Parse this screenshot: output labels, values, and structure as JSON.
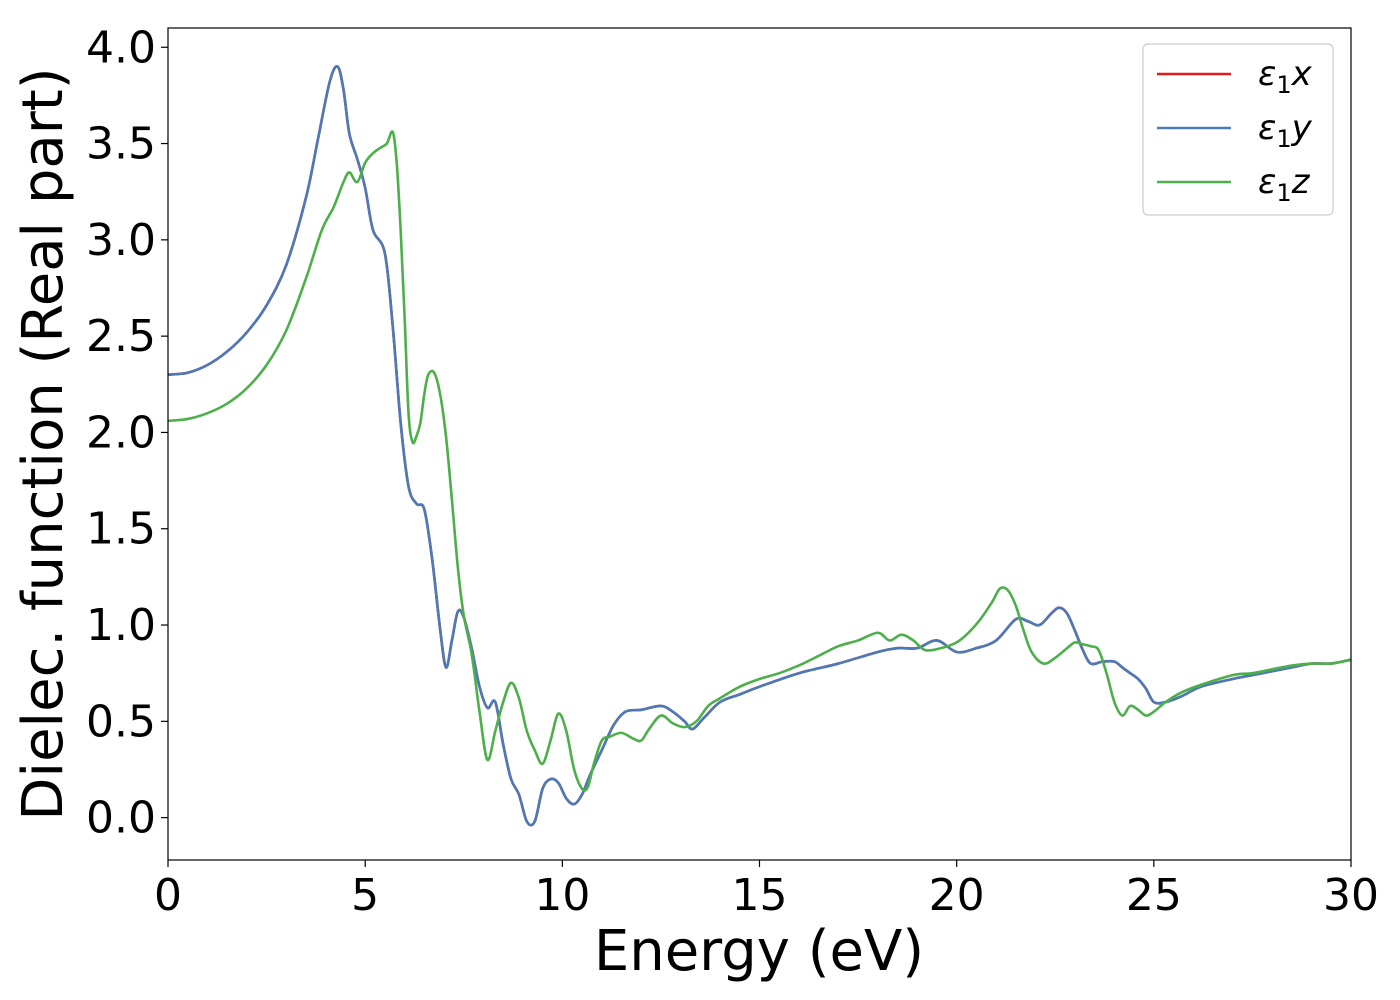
{
  "chart_data": {
    "type": "line",
    "xlabel": "Energy (eV)",
    "ylabel": "Dielec. function (Real part)",
    "xlim": [
      0,
      30
    ],
    "ylim": [
      -0.22,
      4.1
    ],
    "xticks": [
      0,
      5,
      10,
      15,
      20,
      25,
      30
    ],
    "xtick_labels": [
      "0",
      "5",
      "10",
      "15",
      "20",
      "25",
      "30"
    ],
    "yticks": [
      0.0,
      0.5,
      1.0,
      1.5,
      2.0,
      2.5,
      3.0,
      3.5,
      4.0
    ],
    "ytick_labels": [
      "0.0",
      "0.5",
      "1.0",
      "1.5",
      "2.0",
      "2.5",
      "3.0",
      "3.5",
      "4.0"
    ],
    "grid": false,
    "legend_position": "top-right",
    "series": [
      {
        "name": "ε1x",
        "legend_base": "ε",
        "legend_sub": "1",
        "legend_var": "x",
        "color": "#e41a1c",
        "x": [
          0,
          0.5,
          1,
          1.5,
          2,
          2.5,
          3,
          3.5,
          3.8,
          4.1,
          4.3,
          4.45,
          4.6,
          4.8,
          5.0,
          5.2,
          5.5,
          5.7,
          5.9,
          6.1,
          6.3,
          6.5,
          6.7,
          6.9,
          7.05,
          7.2,
          7.35,
          7.5,
          7.7,
          7.9,
          8.1,
          8.3,
          8.5,
          8.7,
          8.9,
          9.1,
          9.3,
          9.5,
          9.7,
          9.9,
          10.1,
          10.3,
          10.5,
          10.7,
          11.0,
          11.3,
          11.6,
          12.0,
          12.5,
          12.8,
          13.1,
          13.3,
          13.6,
          14.0,
          14.5,
          15,
          16,
          17,
          18,
          18.5,
          19,
          19.5,
          20,
          20.5,
          21,
          21.5,
          21.8,
          22.1,
          22.4,
          22.6,
          22.8,
          23.0,
          23.2,
          23.4,
          23.7,
          24.0,
          24.2,
          24.4,
          24.6,
          24.8,
          25.0,
          25.3,
          25.7,
          26.2,
          27,
          27.5,
          28,
          28.5,
          29,
          29.5,
          30
        ],
        "y": [
          2.3,
          2.31,
          2.35,
          2.42,
          2.52,
          2.66,
          2.87,
          3.22,
          3.52,
          3.82,
          3.9,
          3.78,
          3.55,
          3.42,
          3.27,
          3.05,
          2.93,
          2.55,
          2.05,
          1.72,
          1.63,
          1.6,
          1.34,
          0.98,
          0.78,
          0.92,
          1.07,
          1.04,
          0.88,
          0.68,
          0.57,
          0.6,
          0.38,
          0.2,
          0.12,
          -0.02,
          -0.02,
          0.15,
          0.2,
          0.18,
          0.1,
          0.07,
          0.12,
          0.22,
          0.35,
          0.48,
          0.55,
          0.56,
          0.58,
          0.55,
          0.5,
          0.46,
          0.52,
          0.6,
          0.64,
          0.68,
          0.75,
          0.8,
          0.86,
          0.88,
          0.88,
          0.92,
          0.86,
          0.88,
          0.92,
          1.03,
          1.02,
          1.0,
          1.06,
          1.09,
          1.06,
          0.97,
          0.87,
          0.8,
          0.81,
          0.81,
          0.78,
          0.75,
          0.72,
          0.67,
          0.6,
          0.6,
          0.63,
          0.68,
          0.72,
          0.74,
          0.76,
          0.78,
          0.8,
          0.8,
          0.82
        ]
      },
      {
        "name": "ε1y",
        "legend_base": "ε",
        "legend_sub": "1",
        "legend_var": "y",
        "color": "#4a7ab8",
        "x": [
          0,
          0.5,
          1,
          1.5,
          2,
          2.5,
          3,
          3.5,
          3.8,
          4.1,
          4.3,
          4.45,
          4.6,
          4.8,
          5.0,
          5.2,
          5.5,
          5.7,
          5.9,
          6.1,
          6.3,
          6.5,
          6.7,
          6.9,
          7.05,
          7.2,
          7.35,
          7.5,
          7.7,
          7.9,
          8.1,
          8.3,
          8.5,
          8.7,
          8.9,
          9.1,
          9.3,
          9.5,
          9.7,
          9.9,
          10.1,
          10.3,
          10.5,
          10.7,
          11.0,
          11.3,
          11.6,
          12.0,
          12.5,
          12.8,
          13.1,
          13.3,
          13.6,
          14.0,
          14.5,
          15,
          16,
          17,
          18,
          18.5,
          19,
          19.5,
          20,
          20.5,
          21,
          21.5,
          21.8,
          22.1,
          22.4,
          22.6,
          22.8,
          23.0,
          23.2,
          23.4,
          23.7,
          24.0,
          24.2,
          24.4,
          24.6,
          24.8,
          25.0,
          25.3,
          25.7,
          26.2,
          27,
          27.5,
          28,
          28.5,
          29,
          29.5,
          30
        ],
        "y": [
          2.3,
          2.31,
          2.35,
          2.42,
          2.52,
          2.66,
          2.87,
          3.22,
          3.52,
          3.82,
          3.9,
          3.78,
          3.55,
          3.42,
          3.27,
          3.05,
          2.93,
          2.55,
          2.05,
          1.72,
          1.63,
          1.6,
          1.34,
          0.98,
          0.78,
          0.92,
          1.07,
          1.04,
          0.88,
          0.68,
          0.57,
          0.6,
          0.38,
          0.2,
          0.12,
          -0.02,
          -0.02,
          0.15,
          0.2,
          0.18,
          0.1,
          0.07,
          0.12,
          0.22,
          0.35,
          0.48,
          0.55,
          0.56,
          0.58,
          0.55,
          0.5,
          0.46,
          0.52,
          0.6,
          0.64,
          0.68,
          0.75,
          0.8,
          0.86,
          0.88,
          0.88,
          0.92,
          0.86,
          0.88,
          0.92,
          1.03,
          1.02,
          1.0,
          1.06,
          1.09,
          1.06,
          0.97,
          0.87,
          0.8,
          0.81,
          0.81,
          0.78,
          0.75,
          0.72,
          0.67,
          0.6,
          0.6,
          0.63,
          0.68,
          0.72,
          0.74,
          0.76,
          0.78,
          0.8,
          0.8,
          0.82
        ]
      },
      {
        "name": "ε1z",
        "legend_base": "ε",
        "legend_sub": "1",
        "legend_var": "z",
        "color": "#4daf4a",
        "x": [
          0,
          0.5,
          1,
          1.5,
          2,
          2.5,
          3,
          3.5,
          3.9,
          4.2,
          4.45,
          4.6,
          4.8,
          5.0,
          5.2,
          5.4,
          5.55,
          5.7,
          5.8,
          5.9,
          6.0,
          6.1,
          6.2,
          6.3,
          6.4,
          6.5,
          6.6,
          6.75,
          6.9,
          7.05,
          7.2,
          7.35,
          7.5,
          7.7,
          7.9,
          8.1,
          8.3,
          8.5,
          8.7,
          8.9,
          9.1,
          9.3,
          9.5,
          9.7,
          9.9,
          10.1,
          10.3,
          10.5,
          10.65,
          10.8,
          11.0,
          11.2,
          11.5,
          11.8,
          12.0,
          12.2,
          12.5,
          12.8,
          13.1,
          13.4,
          13.7,
          14.0,
          14.5,
          15,
          15.5,
          16,
          16.5,
          17,
          17.5,
          18,
          18.3,
          18.6,
          18.9,
          19.2,
          19.6,
          20,
          20.3,
          20.6,
          20.9,
          21.1,
          21.3,
          21.5,
          21.7,
          21.9,
          22.2,
          22.5,
          22.8,
          23.0,
          23.2,
          23.4,
          23.6,
          23.8,
          24.0,
          24.2,
          24.4,
          24.6,
          24.8,
          25.0,
          25.3,
          25.7,
          26.2,
          27,
          27.5,
          28,
          28.5,
          29,
          29.5,
          30
        ],
        "y": [
          2.06,
          2.07,
          2.1,
          2.15,
          2.23,
          2.35,
          2.53,
          2.8,
          3.05,
          3.17,
          3.3,
          3.35,
          3.3,
          3.4,
          3.45,
          3.48,
          3.5,
          3.56,
          3.4,
          3.05,
          2.6,
          2.1,
          1.95,
          1.98,
          2.05,
          2.2,
          2.3,
          2.31,
          2.2,
          1.98,
          1.65,
          1.3,
          1.05,
          0.85,
          0.55,
          0.3,
          0.45,
          0.6,
          0.7,
          0.62,
          0.45,
          0.35,
          0.28,
          0.4,
          0.54,
          0.45,
          0.25,
          0.15,
          0.16,
          0.28,
          0.4,
          0.42,
          0.44,
          0.41,
          0.4,
          0.46,
          0.53,
          0.49,
          0.47,
          0.5,
          0.58,
          0.62,
          0.68,
          0.72,
          0.75,
          0.79,
          0.84,
          0.89,
          0.92,
          0.96,
          0.92,
          0.95,
          0.92,
          0.87,
          0.88,
          0.91,
          0.96,
          1.03,
          1.12,
          1.19,
          1.18,
          1.1,
          0.97,
          0.86,
          0.8,
          0.83,
          0.88,
          0.91,
          0.9,
          0.89,
          0.87,
          0.75,
          0.6,
          0.53,
          0.58,
          0.56,
          0.53,
          0.55,
          0.6,
          0.65,
          0.69,
          0.74,
          0.75,
          0.77,
          0.79,
          0.8,
          0.8,
          0.82
        ]
      }
    ]
  }
}
